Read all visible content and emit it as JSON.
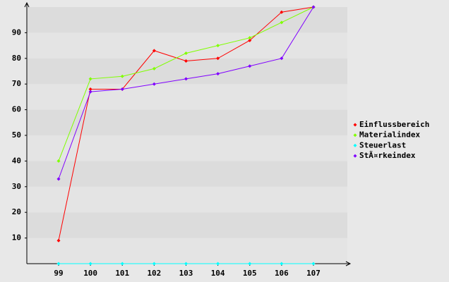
{
  "chart_data": {
    "type": "line",
    "categories": [
      "99",
      "100",
      "101",
      "102",
      "103",
      "104",
      "105",
      "106",
      "107"
    ],
    "series": [
      {
        "name": "Einflussbereich",
        "color": "#ff0000",
        "values": [
          9,
          68,
          68,
          83,
          79,
          80,
          87,
          98,
          100
        ]
      },
      {
        "name": "Materialindex",
        "color": "#80ff00",
        "values": [
          40,
          72,
          73,
          76,
          82,
          85,
          88,
          94,
          100
        ]
      },
      {
        "name": "Steuerlast",
        "color": "#00ffff",
        "values": [
          0,
          0,
          0,
          0,
          0,
          0,
          0,
          0,
          0
        ]
      },
      {
        "name": "StÃ¤rkeindex",
        "color": "#8000ff",
        "values": [
          33,
          67,
          68,
          70,
          72,
          74,
          77,
          80,
          100
        ]
      }
    ],
    "ylim": [
      0,
      100
    ],
    "yticks": [
      10,
      20,
      30,
      40,
      50,
      60,
      70,
      80,
      90
    ],
    "grid": true,
    "legend": "right"
  }
}
